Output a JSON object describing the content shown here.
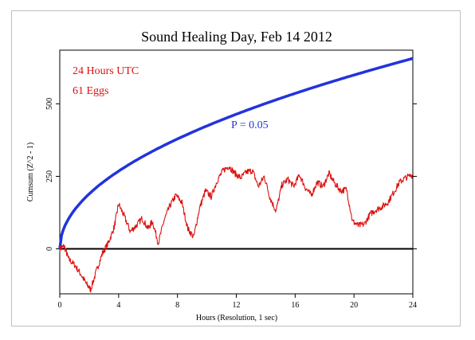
{
  "chart_data": {
    "type": "line",
    "title": "Sound Healing Day, Feb 14 2012",
    "xlabel": "Hours (Resolution, 1 sec)",
    "ylabel": "Cumsum (Z^2 - 1)",
    "annotations": [
      "24 Hours UTC",
      "61 Eggs",
      "P = 0.05"
    ],
    "xlim": [
      0,
      24
    ],
    "ylim": [
      -155,
      685
    ],
    "x_ticks": [
      0,
      4,
      8,
      12,
      16,
      20,
      24
    ],
    "y_ticks": [
      0,
      250,
      500
    ],
    "grid": false,
    "series": [
      {
        "color": "#2233dd",
        "x": [
          0,
          0.25,
          0.5,
          1,
          2,
          3,
          4,
          5,
          6,
          7,
          8,
          9,
          10,
          11,
          12,
          13,
          14,
          15,
          16,
          17,
          18,
          19,
          20,
          21,
          22,
          23,
          24
        ],
        "y": [
          0,
          67,
          95,
          134,
          190,
          232,
          268,
          300,
          329,
          355,
          380,
          403,
          424,
          445,
          465,
          484,
          502,
          519,
          536,
          553,
          569,
          585,
          600,
          615,
          629,
          643,
          657
        ]
      },
      {
        "color": "#dd1111",
        "x": [
          0,
          0.3,
          0.6,
          1.0,
          1.4,
          1.8,
          2.1,
          2.5,
          2.9,
          3.3,
          3.7,
          4.0,
          4.4,
          4.8,
          5.2,
          5.6,
          6.0,
          6.3,
          6.7,
          7.1,
          7.5,
          7.9,
          8.3,
          8.7,
          9.1,
          9.5,
          9.9,
          10.3,
          10.7,
          11.1,
          11.5,
          11.9,
          12.3,
          12.7,
          13.1,
          13.5,
          13.9,
          14.3,
          14.7,
          15.1,
          15.5,
          15.9,
          16.3,
          16.7,
          17.1,
          17.5,
          17.9,
          18.3,
          18.7,
          19.1,
          19.5,
          19.9,
          20.3,
          20.7,
          21.1,
          21.5,
          21.9,
          22.3,
          22.7,
          23.1,
          23.5,
          24.0
        ],
        "y": [
          0,
          10,
          -35,
          -55,
          -85,
          -120,
          -140,
          -75,
          -15,
          20,
          75,
          155,
          110,
          60,
          80,
          105,
          70,
          95,
          20,
          100,
          150,
          185,
          160,
          70,
          40,
          140,
          200,
          180,
          235,
          270,
          285,
          260,
          245,
          265,
          270,
          215,
          250,
          175,
          130,
          220,
          240,
          215,
          255,
          210,
          185,
          230,
          215,
          260,
          225,
          200,
          205,
          95,
          80,
          85,
          120,
          135,
          145,
          160,
          195,
          230,
          245,
          255
        ]
      }
    ]
  }
}
